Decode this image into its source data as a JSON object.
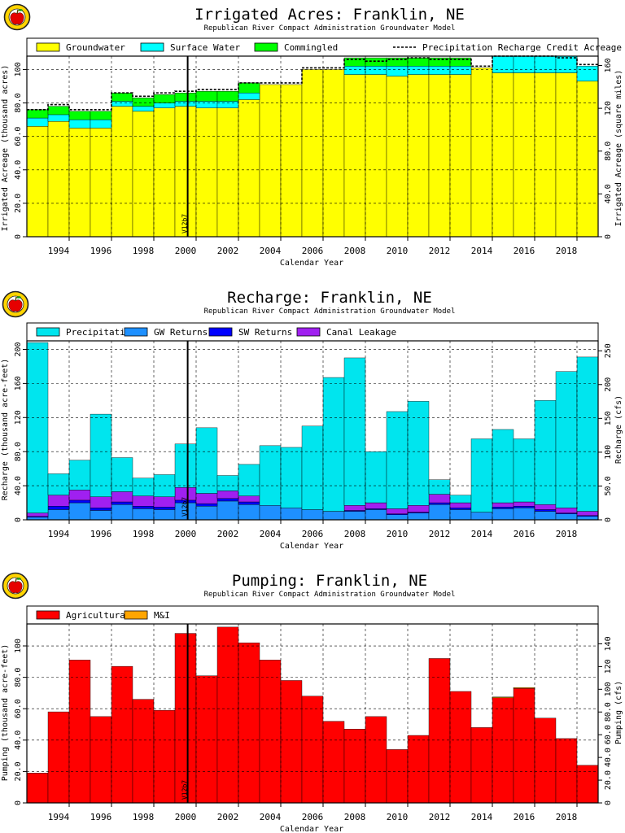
{
  "chart_data": [
    {
      "type": "bar",
      "title": "Irrigated Acres: Franklin, NE",
      "subtitle": "Republican River Compact Administration Groundwater Model",
      "xlabel": "Calendar Year",
      "ylabel": "Irrigated Acreage (thousand acres)",
      "ylabel2": "Irrigated Acreage (square miles)",
      "ylim": [
        0,
        108
      ],
      "yticks": [
        "0",
        "20.0",
        "40.0",
        "60.0",
        "80.0",
        "100"
      ],
      "y2ticks": [
        "0",
        "40.0",
        "80.0",
        "120",
        "160"
      ],
      "years": [
        1993,
        1994,
        1995,
        1996,
        1997,
        1998,
        1999,
        2000,
        2001,
        2002,
        2003,
        2004,
        2005,
        2006,
        2007,
        2008,
        2009,
        2010,
        2011,
        2012,
        2013,
        2014,
        2015,
        2016,
        2017,
        2018,
        2019
      ],
      "xticks": [
        "1994",
        "1996",
        "1998",
        "2000",
        "2002",
        "2004",
        "2006",
        "2008",
        "2010",
        "2012",
        "2014",
        "2016",
        "2018"
      ],
      "marker_label": "V12b7",
      "legend": [
        "Groundwater",
        "Surface Water",
        "Commingled",
        "Precipitation Recharge Credit Acreage"
      ],
      "series": [
        {
          "name": "Groundwater",
          "color": "#ffff00",
          "values": [
            66,
            69,
            65,
            65,
            78,
            75,
            77,
            78,
            77,
            77,
            82,
            91,
            91,
            100,
            100,
            97,
            97,
            96,
            97,
            97,
            97,
            101,
            98,
            98,
            98,
            98,
            93
          ]
        },
        {
          "name": "Surface Water",
          "color": "#00ffff",
          "values": [
            5,
            4,
            5,
            5,
            3,
            3,
            3,
            3,
            4,
            4,
            4,
            0,
            0,
            0,
            0,
            5,
            5,
            6,
            5,
            5,
            5,
            0,
            10,
            10,
            10,
            10,
            9
          ]
        },
        {
          "name": "Commingled",
          "color": "#00ff00",
          "values": [
            5,
            5,
            5,
            5,
            5,
            5,
            5,
            5,
            6,
            6,
            6,
            0,
            0,
            0,
            0,
            5,
            5,
            5,
            5,
            5,
            5,
            0,
            0,
            0,
            0,
            0,
            0
          ]
        }
      ],
      "credit_line": [
        76,
        79,
        76,
        76,
        86,
        84,
        86,
        87,
        88,
        88,
        92,
        92,
        92,
        101,
        101,
        106,
        105,
        106,
        107,
        106,
        106,
        102,
        108,
        108,
        108,
        107,
        103
      ]
    },
    {
      "type": "bar",
      "title": "Recharge: Franklin, NE",
      "subtitle": "Republican River Compact Administration Groundwater Model",
      "xlabel": "Calendar Year",
      "ylabel": "Recharge (thousand acre-feet)",
      "ylabel2": "Recharge (cfs)",
      "ylim": [
        0,
        210
      ],
      "yticks": [
        "0",
        "40.0",
        "80.0",
        "120",
        "160",
        "200"
      ],
      "y2ticks": [
        "0",
        "50.0",
        "100",
        "150",
        "200",
        "250"
      ],
      "years": [
        1993,
        1994,
        1995,
        1996,
        1997,
        1998,
        1999,
        2000,
        2001,
        2002,
        2003,
        2004,
        2005,
        2006,
        2007,
        2008,
        2009,
        2010,
        2011,
        2012,
        2013,
        2014,
        2015,
        2016,
        2017,
        2018,
        2019
      ],
      "xticks": [
        "1994",
        "1996",
        "1998",
        "2000",
        "2002",
        "2004",
        "2006",
        "2008",
        "2010",
        "2012",
        "2014",
        "2016",
        "2018"
      ],
      "marker_label": "V12b7",
      "legend": [
        "Precipitation",
        "GW Returns",
        "SW Returns",
        "Canal Leakage"
      ],
      "series": [
        {
          "name": "GW Returns",
          "color": "#1e90ff",
          "values": [
            3,
            12,
            20,
            11,
            18,
            13,
            12,
            20,
            16,
            22,
            18,
            17,
            14,
            12,
            10,
            10,
            12,
            6,
            8,
            18,
            12,
            9,
            13,
            14,
            10,
            7,
            4
          ]
        },
        {
          "name": "SW Returns",
          "color": "#0000ff",
          "values": [
            1,
            4,
            3,
            3,
            3,
            3,
            3,
            3,
            3,
            3,
            3,
            0,
            0,
            0,
            0,
            1,
            1,
            1,
            1,
            2,
            2,
            0,
            2,
            2,
            2,
            1,
            1
          ]
        },
        {
          "name": "Canal Leakage",
          "color": "#a020f0",
          "values": [
            4,
            13,
            12,
            13,
            12,
            12,
            12,
            15,
            12,
            9,
            7,
            0,
            0,
            0,
            0,
            6,
            7,
            6,
            8,
            10,
            6,
            0,
            5,
            5,
            6,
            6,
            5
          ]
        },
        {
          "name": "Precipitation",
          "color": "#00e5ee",
          "values": [
            200,
            25,
            35,
            97,
            40,
            21,
            26,
            51,
            77,
            18,
            37,
            70,
            71,
            98,
            157,
            173,
            60,
            114,
            122,
            17,
            9,
            86,
            86,
            74,
            122,
            160,
            181
          ]
        }
      ]
    },
    {
      "type": "bar",
      "title": "Pumping: Franklin, NE",
      "subtitle": "Republican River Compact Administration Groundwater Model",
      "xlabel": "Calendar Year",
      "ylabel": "Pumping (thousand acre-feet)",
      "ylabel2": "Pumping (cfs)",
      "ylim": [
        0,
        114
      ],
      "yticks": [
        "0",
        "20.0",
        "40.0",
        "60.0",
        "80.0",
        "100"
      ],
      "y2ticks": [
        "0",
        "20.0",
        "40.0",
        "60.0",
        "80.0",
        "100",
        "120",
        "140"
      ],
      "years": [
        1993,
        1994,
        1995,
        1996,
        1997,
        1998,
        1999,
        2000,
        2001,
        2002,
        2003,
        2004,
        2005,
        2006,
        2007,
        2008,
        2009,
        2010,
        2011,
        2012,
        2013,
        2014,
        2015,
        2016,
        2017,
        2018,
        2019
      ],
      "xticks": [
        "1994",
        "1996",
        "1998",
        "2000",
        "2002",
        "2004",
        "2006",
        "2008",
        "2010",
        "2012",
        "2014",
        "2016",
        "2018"
      ],
      "marker_label": "V12b7",
      "legend": [
        "Agricultural",
        "M&I"
      ],
      "series": [
        {
          "name": "Agricultural",
          "color": "#ff0000",
          "values": [
            19,
            58,
            91,
            55,
            87,
            66,
            59,
            108,
            81,
            112,
            102,
            91,
            78,
            68,
            52,
            47,
            55,
            34,
            43,
            92,
            71,
            48,
            67,
            73,
            54,
            41,
            24
          ]
        },
        {
          "name": "M&I",
          "color": "#ffa500",
          "values": [
            0,
            0,
            0,
            0,
            0,
            0,
            0,
            0,
            0,
            0,
            0,
            0,
            0,
            0,
            0,
            0,
            0,
            0,
            0,
            0,
            0,
            0,
            0.5,
            0.5,
            0,
            0,
            0
          ]
        }
      ]
    }
  ]
}
